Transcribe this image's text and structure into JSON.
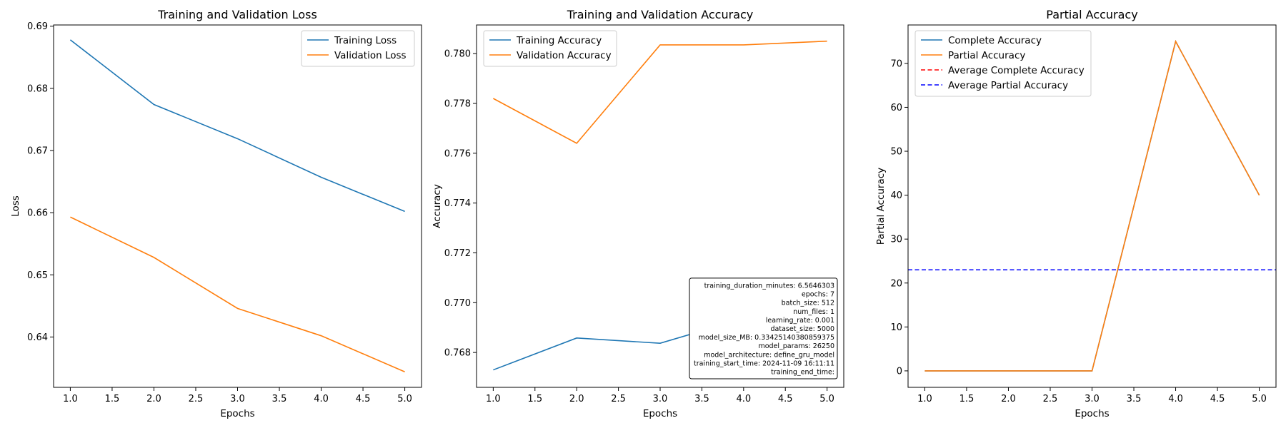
{
  "colors": {
    "series_blue": "#1f77b4",
    "series_orange": "#ff7f0e",
    "avg_red": "#ff0000",
    "avg_blue": "#0000ff"
  },
  "chart_data": [
    {
      "type": "line",
      "title": "Training and Validation Loss",
      "xlabel": "Epochs",
      "ylabel": "Loss",
      "xlim": [
        0.8,
        5.2
      ],
      "ylim": [
        0.6319,
        0.6902
      ],
      "xticks": [
        1.0,
        1.5,
        2.0,
        2.5,
        3.0,
        3.5,
        4.0,
        4.5,
        5.0
      ],
      "xtick_labels": [
        "1.0",
        "1.5",
        "2.0",
        "2.5",
        "3.0",
        "3.5",
        "4.0",
        "4.5",
        "5.0"
      ],
      "yticks": [
        0.64,
        0.65,
        0.66,
        0.67,
        0.68,
        0.69
      ],
      "ytick_labels": [
        "0.64",
        "0.65",
        "0.66",
        "0.67",
        "0.68",
        "0.69"
      ],
      "legend_position": "top-right",
      "x": [
        1,
        2,
        3,
        4,
        5
      ],
      "series": [
        {
          "name": "Training Loss",
          "color": "#1f77b4",
          "values": [
            0.6878,
            0.6774,
            0.6719,
            0.6657,
            0.6602
          ]
        },
        {
          "name": "Validation Loss",
          "color": "#ff7f0e",
          "values": [
            0.6593,
            0.6528,
            0.6446,
            0.6402,
            0.6344
          ]
        }
      ]
    },
    {
      "type": "line",
      "title": "Training and Validation Accuracy",
      "xlabel": "Epochs",
      "ylabel": "Accuracy",
      "xlim": [
        0.8,
        5.2
      ],
      "ylim": [
        0.7666,
        0.78115
      ],
      "xticks": [
        1.0,
        1.5,
        2.0,
        2.5,
        3.0,
        3.5,
        4.0,
        4.5,
        5.0
      ],
      "xtick_labels": [
        "1.0",
        "1.5",
        "2.0",
        "2.5",
        "3.0",
        "3.5",
        "4.0",
        "4.5",
        "5.0"
      ],
      "yticks": [
        0.768,
        0.77,
        0.772,
        0.774,
        0.776,
        0.778,
        0.78
      ],
      "ytick_labels": [
        "0.768",
        "0.770",
        "0.772",
        "0.774",
        "0.776",
        "0.778",
        "0.780"
      ],
      "legend_position": "top-left",
      "x": [
        1,
        2,
        3,
        4,
        5
      ],
      "series": [
        {
          "name": "Training Accuracy",
          "color": "#1f77b4",
          "values": [
            0.7673,
            0.76858,
            0.76837,
            0.76936,
            0.76979
          ]
        },
        {
          "name": "Validation Accuracy",
          "color": "#ff7f0e",
          "values": [
            0.7782,
            0.7764,
            0.78035,
            0.78035,
            0.7805
          ]
        }
      ],
      "annotation_box": {
        "position": "bottom-right",
        "lines": [
          "training_duration_minutes: 6.5646303",
          "epochs: 7",
          "batch_size: 512",
          "num_files: 1",
          "learning_rate: 0.001",
          "dataset_size: 5000",
          "model_size_MB: 0.33425140380859375",
          "model_params: 26250",
          "model_architecture: define_gru_model",
          "training_start_time: 2024-11-09 16:11:11",
          "training_end_time:"
        ]
      }
    },
    {
      "type": "line",
      "title": "Partial Accuracy",
      "xlabel": "Epochs",
      "ylabel": "Partial Accuracy",
      "xlim": [
        0.8,
        5.2
      ],
      "ylim": [
        -3.75,
        78.75
      ],
      "xticks": [
        1.0,
        1.5,
        2.0,
        2.5,
        3.0,
        3.5,
        4.0,
        4.5,
        5.0
      ],
      "xtick_labels": [
        "1.0",
        "1.5",
        "2.0",
        "2.5",
        "3.0",
        "3.5",
        "4.0",
        "4.5",
        "5.0"
      ],
      "yticks": [
        0,
        10,
        20,
        30,
        40,
        50,
        60,
        70
      ],
      "ytick_labels": [
        "0",
        "10",
        "20",
        "30",
        "40",
        "50",
        "60",
        "70"
      ],
      "legend_position": "top-left",
      "x": [
        1,
        2,
        3,
        4,
        5
      ],
      "series": [
        {
          "name": "Complete Accuracy",
          "color": "#1f77b4",
          "values": [
            0,
            0,
            0,
            75,
            40
          ]
        },
        {
          "name": "Partial Accuracy",
          "color": "#ff7f0e",
          "values": [
            0,
            0,
            0,
            75,
            40
          ]
        }
      ],
      "hlines": [
        {
          "name": "Average Complete Accuracy",
          "color": "#ff0000",
          "value": 23
        },
        {
          "name": "Average Partial Accuracy",
          "color": "#0000ff",
          "value": 23
        }
      ]
    }
  ]
}
